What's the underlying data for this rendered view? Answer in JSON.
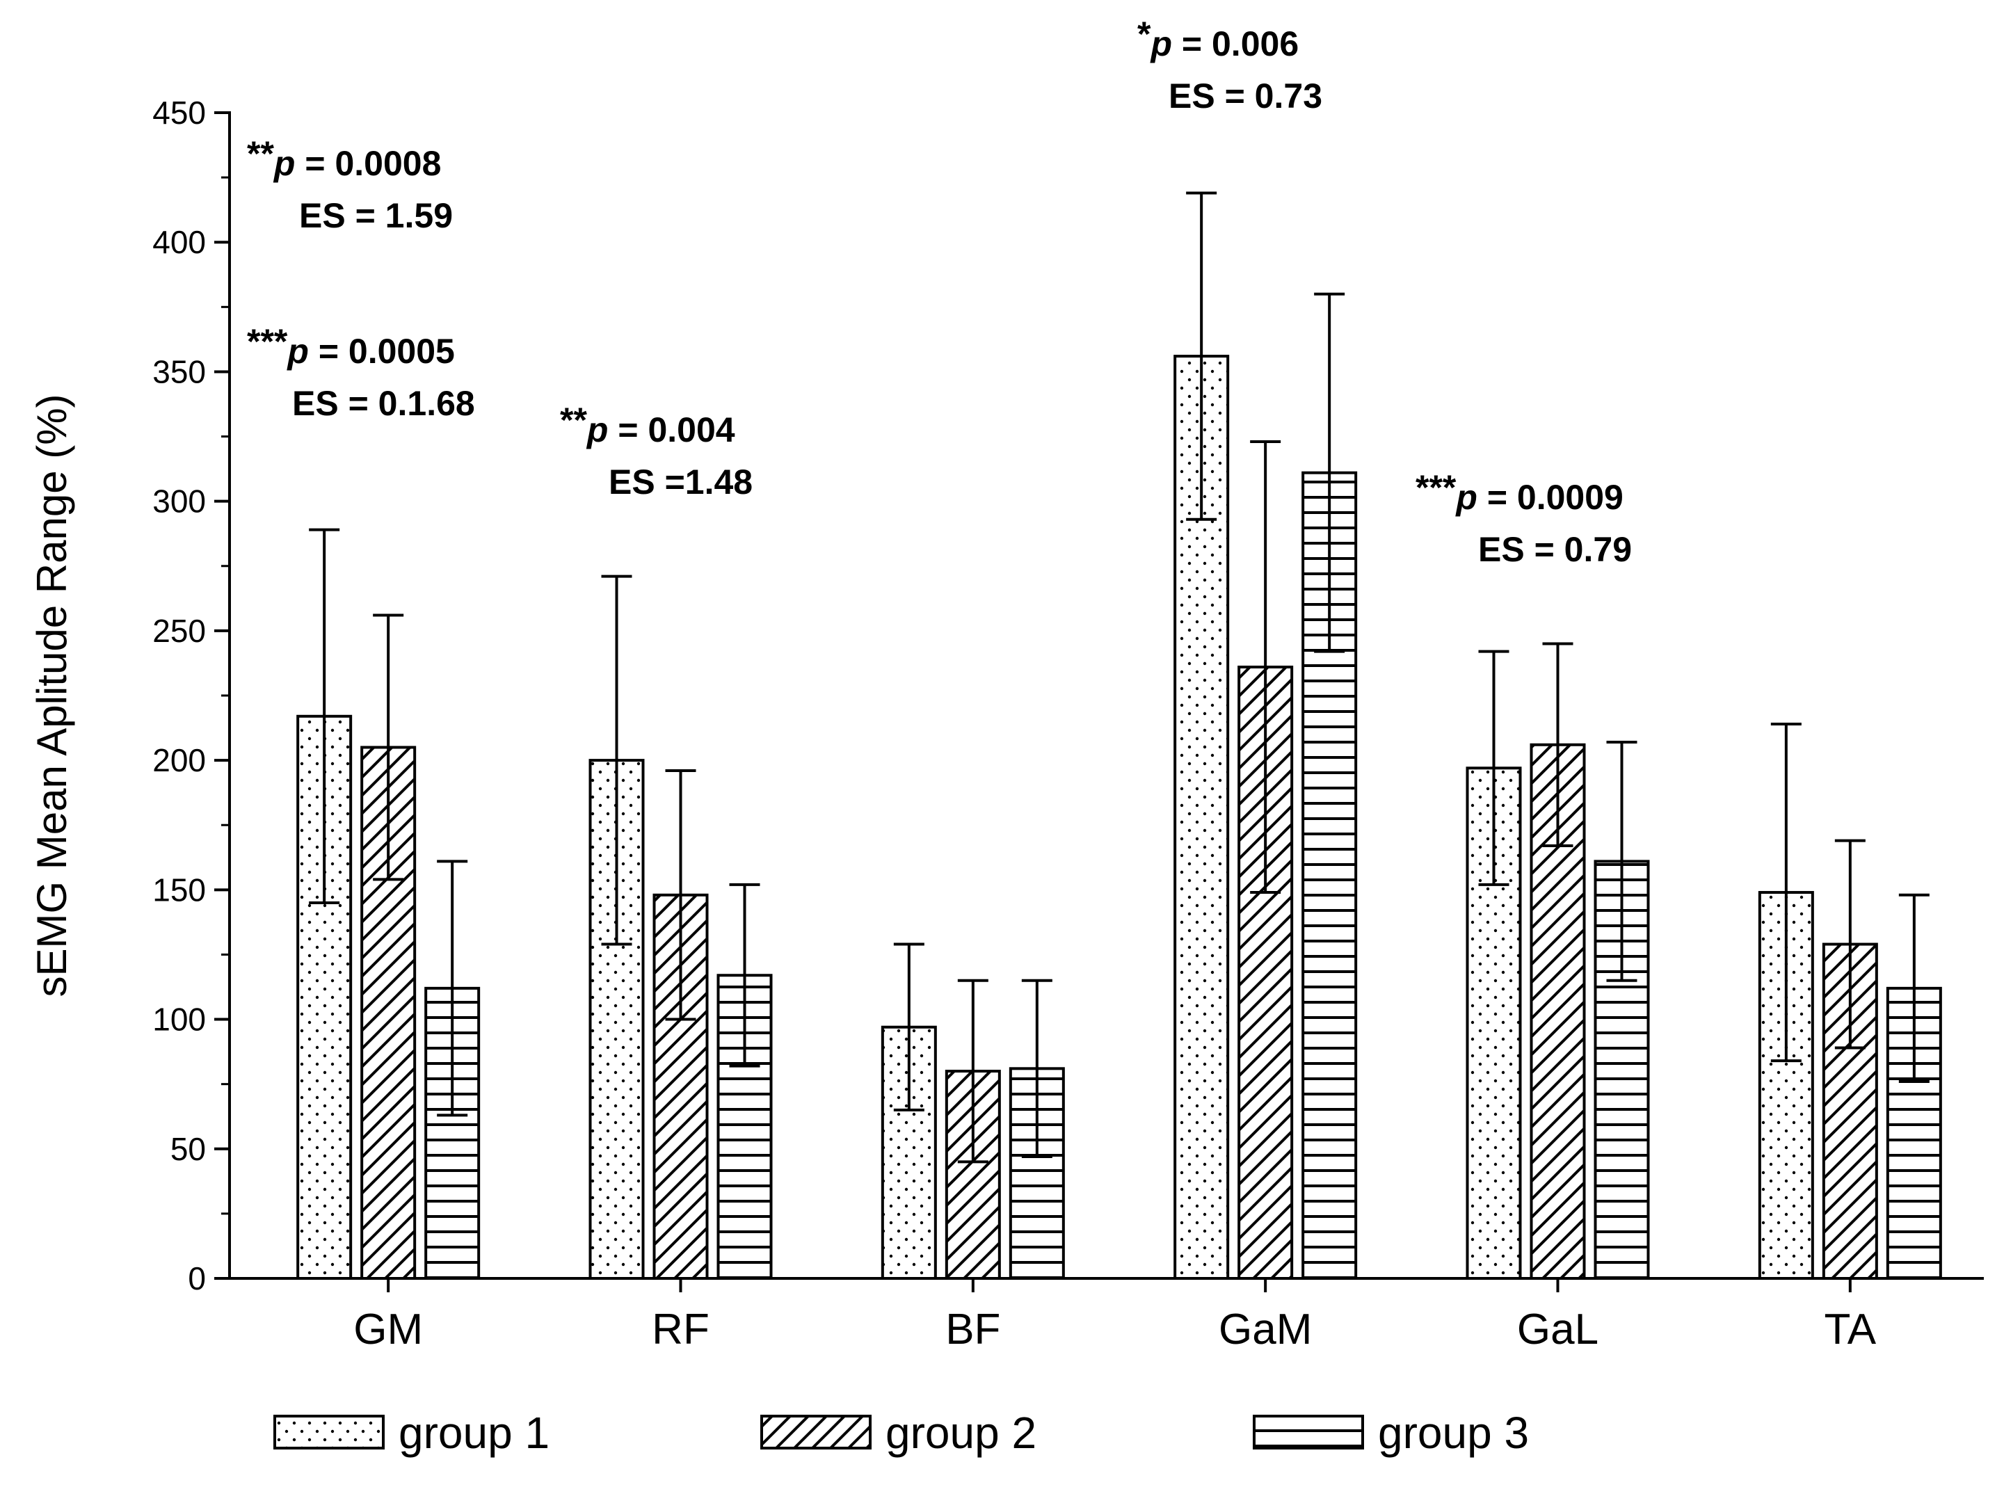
{
  "chart_data": {
    "type": "bar",
    "title": "",
    "xlabel": "",
    "ylabel": "sEMG Mean Aplitude Range (%)",
    "ylim": [
      0,
      450
    ],
    "yticks": [
      0,
      50,
      100,
      150,
      200,
      250,
      300,
      350,
      400,
      450
    ],
    "categories": [
      "GM",
      "RF",
      "BF",
      "GaM",
      "GaL",
      "TA"
    ],
    "series": [
      {
        "name": "group 1",
        "pattern": "dots",
        "values": [
          217,
          200,
          97,
          356,
          197,
          149
        ],
        "errors": [
          72,
          71,
          32,
          63,
          45,
          65
        ]
      },
      {
        "name": "group 2",
        "pattern": "diagonal",
        "values": [
          205,
          148,
          80,
          236,
          206,
          129
        ],
        "errors": [
          51,
          48,
          35,
          87,
          39,
          40
        ]
      },
      {
        "name": "group 3",
        "pattern": "horizontal",
        "values": [
          112,
          117,
          81,
          311,
          161,
          112
        ],
        "errors": [
          49,
          35,
          34,
          69,
          46,
          36
        ]
      }
    ],
    "legend": {
      "position": "bottom",
      "items": [
        "group 1",
        "group 2",
        "group 3"
      ]
    },
    "annotations": [
      {
        "stars": "**",
        "p_prefix": "p",
        "p_value": " = 0.0008",
        "es": "ES = 1.59",
        "near": "GM"
      },
      {
        "stars": "***",
        "p_prefix": "p",
        "p_value": " = 0.0005",
        "es": "ES = 0.1.68",
        "near": "GM"
      },
      {
        "stars": "**",
        "p_prefix": "p",
        "p_value": " = 0.004",
        "es": "ES =1.48",
        "near": "RF"
      },
      {
        "stars": "*",
        "p_prefix": "p",
        "p_value": " = 0.006",
        "es": "ES = 0.73",
        "near": "GaM"
      },
      {
        "stars": "***",
        "p_prefix": "p",
        "p_value": " = 0.0009",
        "es": "ES = 0.79",
        "near": "GaL"
      }
    ]
  }
}
